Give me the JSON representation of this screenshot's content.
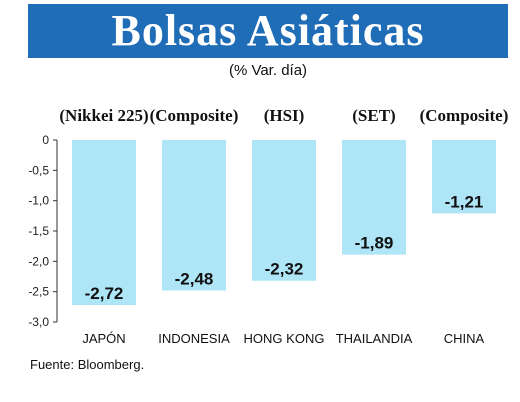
{
  "chart_data": {
    "type": "bar",
    "title": "Bolsas Asiáticas",
    "subtitle": "(% Var. día)",
    "categories": [
      "JAPÓN",
      "INDONESIA",
      "HONG KONG",
      "THAILANDIA",
      "CHINA"
    ],
    "index_names": [
      "(Nikkei 225)",
      "(Composite)",
      "(HSI)",
      "(SET)",
      "(Composite)"
    ],
    "values": [
      -2.72,
      -2.48,
      -2.32,
      -1.89,
      -1.21
    ],
    "value_labels": [
      "-2,72",
      "-2,48",
      "-2,32",
      "-1,89",
      "-1,21"
    ],
    "ylim": [
      -3.0,
      0
    ],
    "yticks": [
      0,
      -0.5,
      -1.0,
      -1.5,
      -2.0,
      -2.5,
      -3.0
    ],
    "ytick_labels": [
      "0",
      "-0,5",
      "-1,0",
      "-1,5",
      "-2,0",
      "-2,5",
      "-3,0"
    ],
    "bar_color": "#aee5f7",
    "grid": false
  },
  "header_color": "#1f6cb7",
  "source": "Fuente: Bloomberg."
}
